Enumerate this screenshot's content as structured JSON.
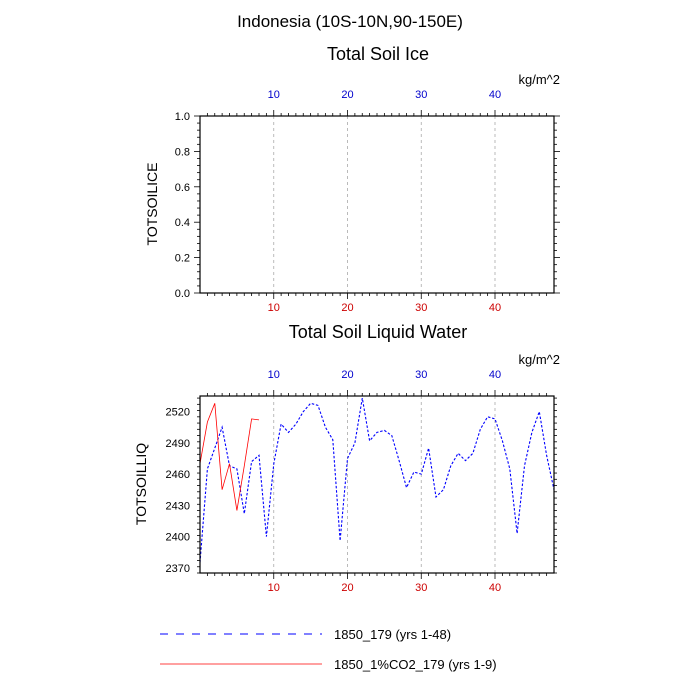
{
  "figure_title": "Indonesia (10S-10N,90-150E)",
  "colors": {
    "series_a": "#0000ff",
    "series_b": "#ff0000",
    "top_ticks": "#0000cc",
    "bottom_ticks": "#cc0000",
    "grid": "#aaaaaa"
  },
  "chart_data": [
    {
      "type": "line",
      "title": "Total Soil Ice",
      "ylabel": "TOTSOILICE",
      "unit_label": "kg/m^2",
      "xlim": [
        0,
        48
      ],
      "ylim": [
        0,
        1
      ],
      "yticks": [
        0.0,
        0.2,
        0.4,
        0.6,
        0.8,
        1.0
      ],
      "ytick_labels": [
        "0.0",
        "0.2",
        "0.4",
        "0.6",
        "0.8",
        "1.0"
      ],
      "xticks_top": [
        10,
        20,
        30,
        40
      ],
      "xticks_bottom": [
        10,
        20,
        30,
        40
      ],
      "grid": "vertical dashed at x ticks",
      "series": []
    },
    {
      "type": "line",
      "title": "Total Soil Liquid Water",
      "ylabel": "TOTSOILLIQ",
      "unit_label": "kg/m^2",
      "xlim": [
        0,
        48
      ],
      "ylim": [
        2365,
        2535
      ],
      "yticks": [
        2370,
        2400,
        2430,
        2460,
        2490,
        2520
      ],
      "ytick_labels": [
        "2370",
        "2400",
        "2430",
        "2460",
        "2490",
        "2520"
      ],
      "xticks_top": [
        10,
        20,
        30,
        40
      ],
      "xticks_bottom": [
        10,
        20,
        30,
        40
      ],
      "grid": "vertical dashed at x ticks",
      "series": [
        {
          "name": "1850_179 (yrs 1-48)",
          "style": "dashed",
          "color": "#0000ff",
          "x": [
            0,
            1,
            2,
            3,
            4,
            5,
            6,
            7,
            8,
            9,
            10,
            11,
            12,
            13,
            14,
            15,
            16,
            17,
            18,
            19,
            20,
            21,
            22,
            23,
            24,
            25,
            26,
            27,
            28,
            29,
            30,
            31,
            32,
            33,
            34,
            35,
            36,
            37,
            38,
            39,
            40,
            41,
            42,
            43,
            44,
            45,
            46,
            47,
            48
          ],
          "y": [
            2375,
            2465,
            2485,
            2505,
            2468,
            2465,
            2422,
            2472,
            2478,
            2400,
            2470,
            2508,
            2500,
            2508,
            2520,
            2528,
            2526,
            2505,
            2493,
            2396,
            2475,
            2490,
            2533,
            2492,
            2500,
            2502,
            2497,
            2473,
            2447,
            2462,
            2460,
            2485,
            2438,
            2445,
            2468,
            2480,
            2473,
            2480,
            2503,
            2515,
            2513,
            2492,
            2465,
            2403,
            2468,
            2500,
            2520,
            2478,
            2445
          ]
        },
        {
          "name": "1850_1%CO2_179 (yrs 1-9)",
          "style": "solid",
          "color": "#ff0000",
          "x": [
            0,
            1,
            2,
            3,
            4,
            5,
            6,
            7,
            8
          ],
          "y": [
            2470,
            2510,
            2528,
            2445,
            2470,
            2425,
            2468,
            2513,
            2512
          ]
        }
      ]
    }
  ],
  "legend": [
    {
      "label": "1850_179 (yrs 1-48)"
    },
    {
      "label": "1850_1%CO2_179 (yrs 1-9)"
    }
  ]
}
